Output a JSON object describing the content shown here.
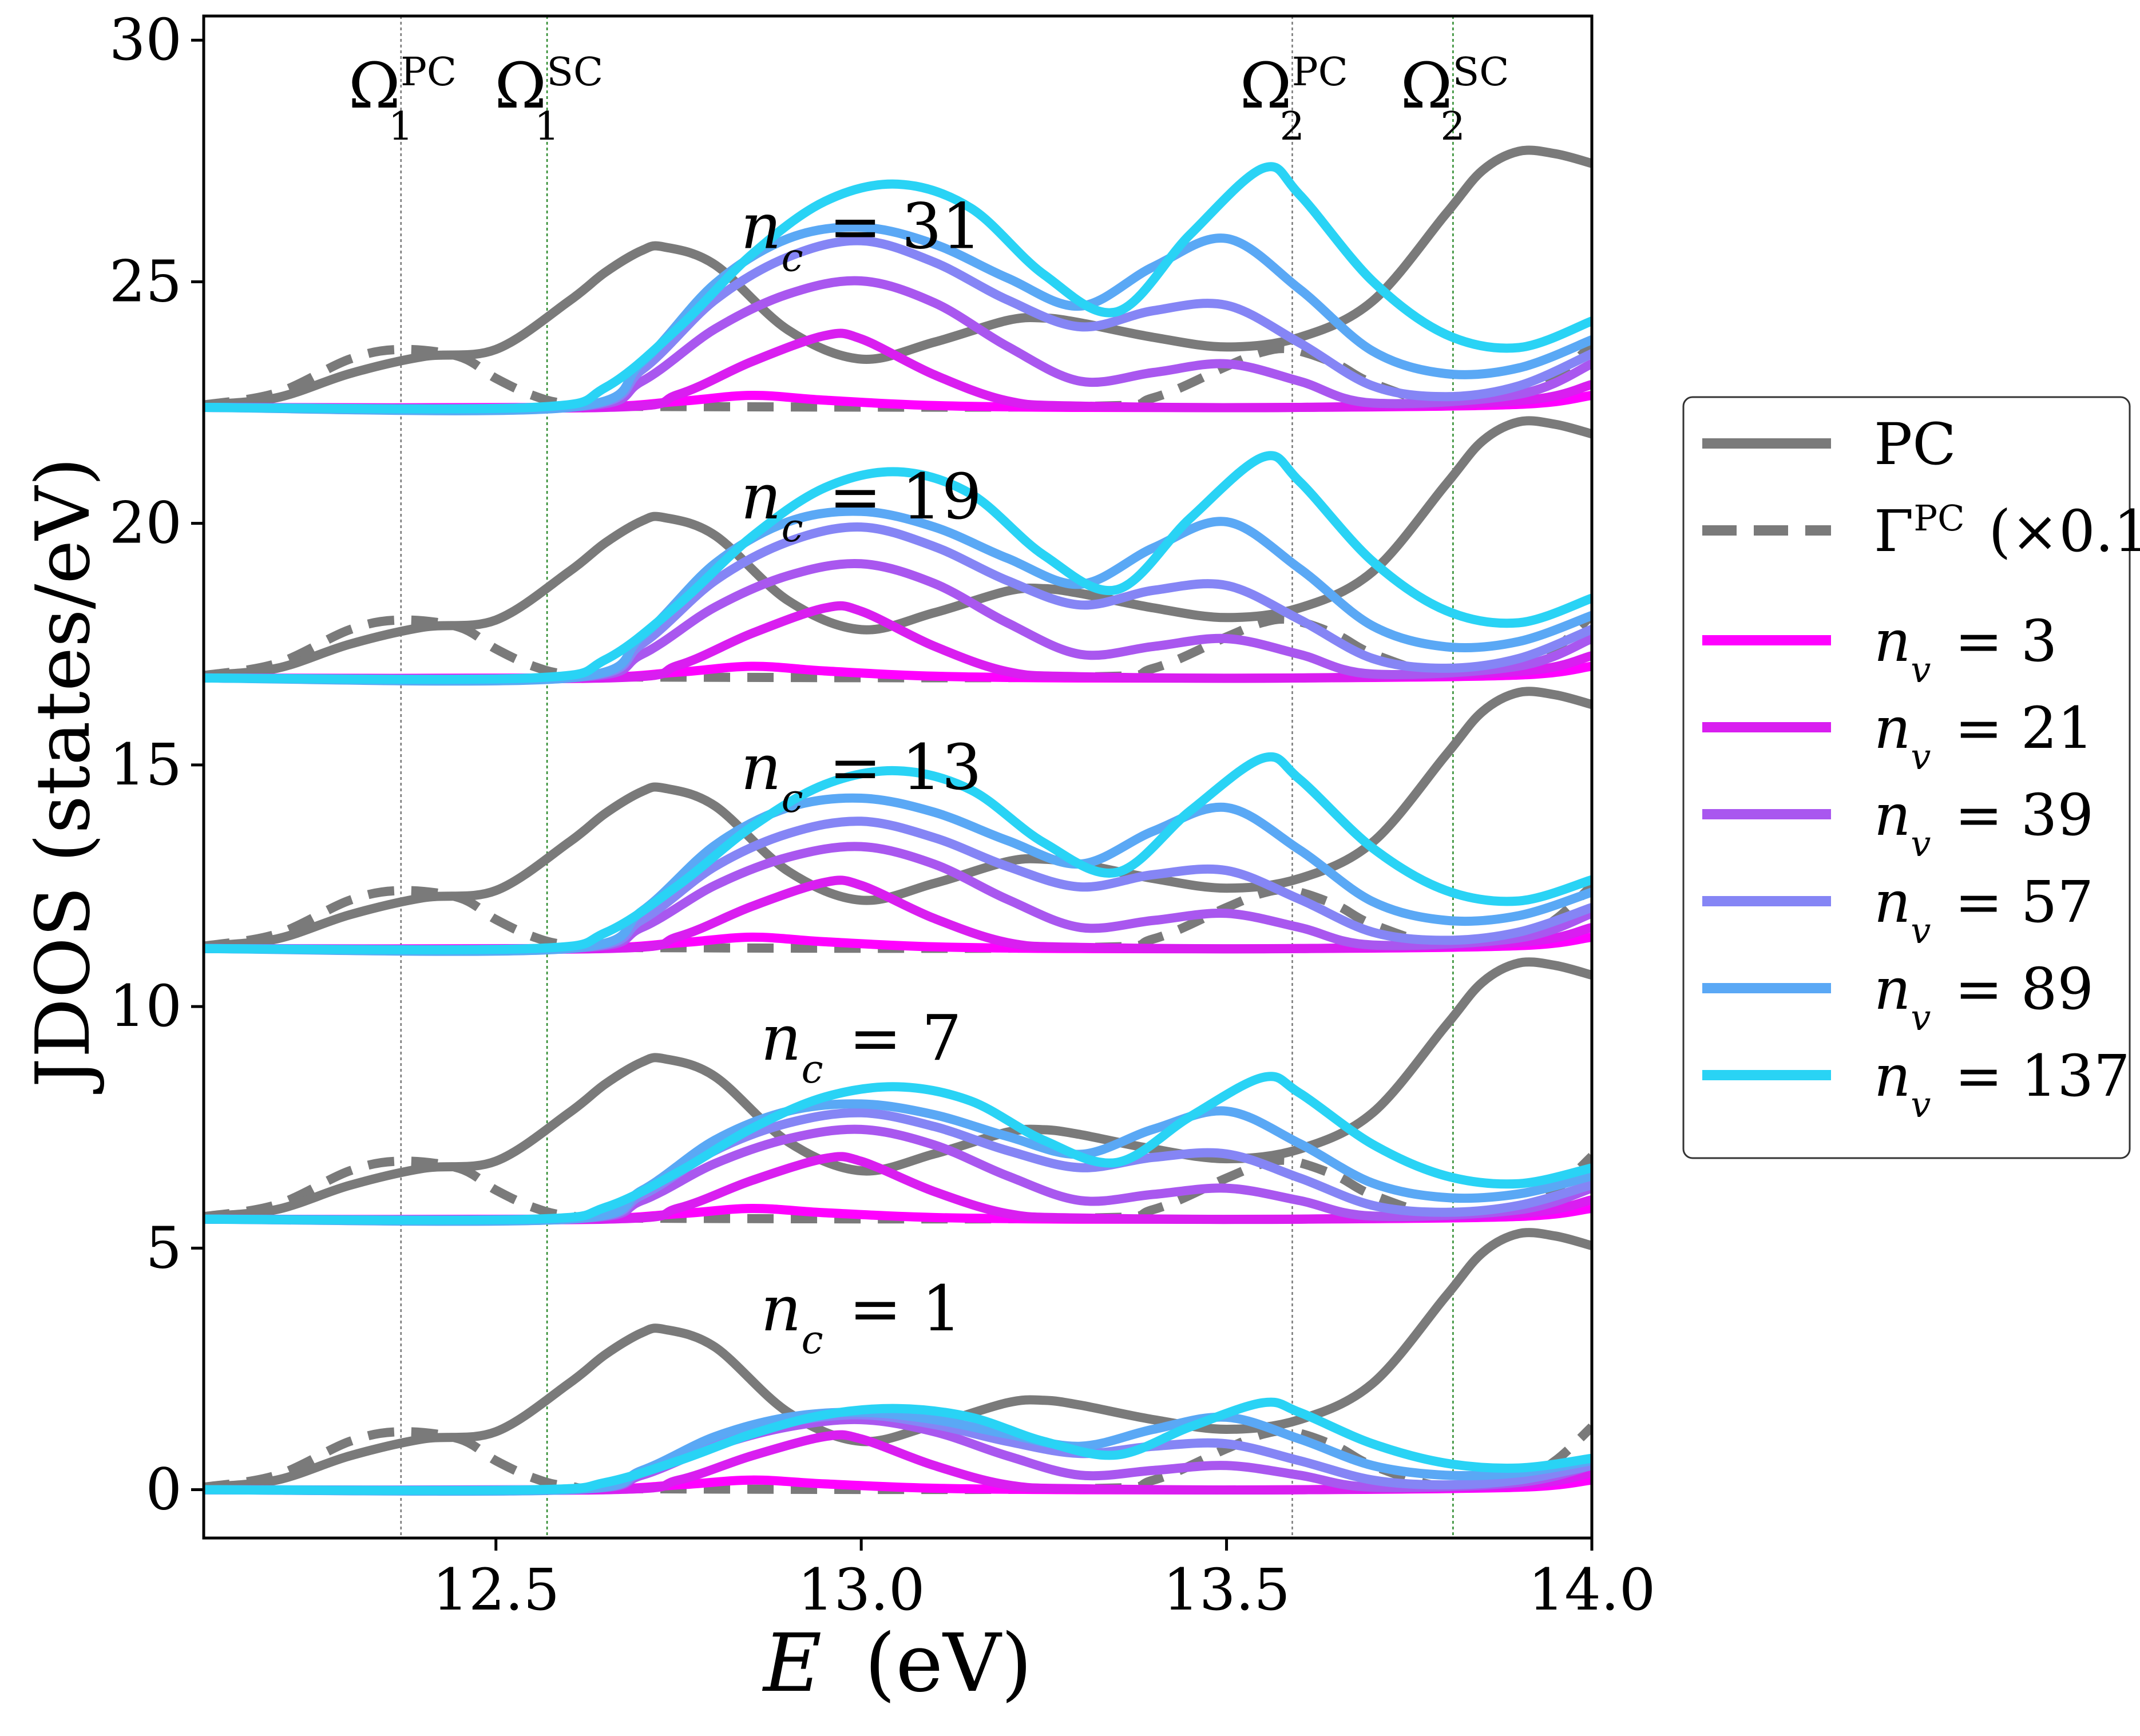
{
  "chart_data": {
    "type": "line",
    "xlabel_symbol": "E",
    "xlabel_unit": "(eV)",
    "ylabel": "JDOS (states/eV)",
    "xlim": [
      12.1,
      14.0
    ],
    "ylim": [
      -1.0,
      30.5
    ],
    "xticks": [
      12.5,
      13.0,
      13.5,
      14.0
    ],
    "xtick_labels": [
      "12.5",
      "13.0",
      "13.5",
      "14.0"
    ],
    "yticks": [
      0,
      5,
      10,
      15,
      20,
      25,
      30
    ],
    "ytick_labels": [
      "0",
      "5",
      "10",
      "15",
      "20",
      "25",
      "30"
    ],
    "vlines": [
      {
        "x": 12.37,
        "base": "Ω",
        "sub": "1",
        "sup": "PC",
        "color": "#777777"
      },
      {
        "x": 12.57,
        "base": "Ω",
        "sub": "1",
        "sup": "SC",
        "color": "#2e8b2e"
      },
      {
        "x": 13.59,
        "base": "Ω",
        "sub": "2",
        "sup": "PC",
        "color": "#777777"
      },
      {
        "x": 13.81,
        "base": "Ω",
        "sub": "2",
        "sup": "SC",
        "color": "#2e8b2e"
      }
    ],
    "groups": [
      {
        "label": "n",
        "sub": "c",
        "value": "= 1",
        "offset": 0.0
      },
      {
        "label": "n",
        "sub": "c",
        "value": "= 7",
        "offset": 5.6
      },
      {
        "label": "n",
        "sub": "c",
        "value": "= 13",
        "offset": 11.2
      },
      {
        "label": "n",
        "sub": "c",
        "value": "= 19",
        "offset": 16.8
      },
      {
        "label": "n",
        "sub": "c",
        "value": "= 31",
        "offset": 22.4
      }
    ],
    "legend": {
      "position": "right",
      "entries": [
        {
          "label": "PC",
          "color": "#7a7a7a",
          "dash": "solid"
        },
        {
          "label": "Γ",
          "sup": "PC",
          "suffix": "(×0.1)",
          "color": "#7a7a7a",
          "dash": "dashed"
        },
        {
          "label": "n",
          "sub": "v",
          "value": "= 3",
          "color": "#ff00ff"
        },
        {
          "label": "n",
          "sub": "v",
          "value": "= 21",
          "color": "#d91ef0"
        },
        {
          "label": "n",
          "sub": "v",
          "value": "= 39",
          "color": "#a957ef"
        },
        {
          "label": "n",
          "sub": "v",
          "value": "= 57",
          "color": "#8585f5"
        },
        {
          "label": "n",
          "sub": "v",
          "value": "= 89",
          "color": "#5aa8f5"
        },
        {
          "label": "n",
          "sub": "v",
          "value": "= 137",
          "color": "#29d3f5"
        }
      ]
    },
    "pc_curve": {
      "x": [
        12.1,
        12.2,
        12.3,
        12.4,
        12.5,
        12.6,
        12.65,
        12.7,
        12.73,
        12.8,
        12.9,
        13.0,
        13.1,
        13.2,
        13.25,
        13.3,
        13.4,
        13.5,
        13.6,
        13.7,
        13.8,
        13.85,
        13.9,
        13.95,
        14.0
      ],
      "y": [
        0.05,
        0.2,
        0.7,
        1.05,
        1.2,
        2.2,
        2.8,
        3.25,
        3.32,
        2.95,
        1.6,
        1.0,
        1.35,
        1.8,
        1.85,
        1.75,
        1.45,
        1.25,
        1.45,
        2.2,
        4.0,
        4.9,
        5.3,
        5.25,
        5.05
      ]
    },
    "gamma_curve": {
      "x": [
        12.1,
        12.2,
        12.3,
        12.37,
        12.45,
        12.5,
        12.55,
        12.6,
        12.7,
        13.3,
        13.4,
        13.5,
        13.55,
        13.59,
        13.65,
        13.7,
        13.8,
        13.9,
        13.95,
        14.0
      ],
      "y": [
        0.05,
        0.3,
        1.0,
        1.2,
        1.05,
        0.6,
        0.25,
        0.07,
        0.02,
        0.02,
        0.2,
        0.85,
        1.15,
        1.2,
        0.9,
        0.5,
        0.05,
        0.2,
        0.6,
        1.3
      ]
    },
    "nv_series": [
      {
        "name": "n_v = 3",
        "color": "#ff00ff",
        "x": [
          12.1,
          12.6,
          12.75,
          12.85,
          12.95,
          13.1,
          13.3,
          13.6,
          13.9,
          14.0
        ],
        "y": [
          0,
          0,
          0.1,
          0.2,
          0.12,
          0.03,
          0,
          0,
          0.05,
          0.2
        ]
      },
      {
        "name": "n_v = 21",
        "color": "#d91ef0",
        "x": [
          12.1,
          12.65,
          12.75,
          12.85,
          12.95,
          13.0,
          13.1,
          13.2,
          13.3,
          13.6,
          13.9,
          14.0
        ],
        "y": [
          0,
          0,
          0.2,
          0.7,
          1.1,
          1.05,
          0.5,
          0.1,
          0.02,
          0,
          0.1,
          0.35
        ]
      },
      {
        "name": "n_v = 39",
        "color": "#a957ef",
        "x": [
          12.1,
          12.6,
          12.7,
          12.8,
          12.9,
          13.0,
          13.1,
          13.2,
          13.3,
          13.4,
          13.5,
          13.6,
          13.7,
          13.9,
          14.0
        ],
        "y": [
          0,
          0,
          0.3,
          0.9,
          1.3,
          1.45,
          1.2,
          0.7,
          0.3,
          0.4,
          0.5,
          0.3,
          0.05,
          0.15,
          0.5
        ]
      },
      {
        "name": "n_v = 57",
        "color": "#8585f5",
        "x": [
          12.1,
          12.6,
          12.7,
          12.8,
          12.9,
          13.0,
          13.1,
          13.2,
          13.3,
          13.4,
          13.5,
          13.6,
          13.7,
          13.8,
          13.9,
          14.0
        ],
        "y": [
          0,
          0,
          0.35,
          1.0,
          1.4,
          1.55,
          1.35,
          1.0,
          0.75,
          0.9,
          0.95,
          0.6,
          0.2,
          0.1,
          0.2,
          0.5
        ]
      },
      {
        "name": "n_v = 89",
        "color": "#5aa8f5",
        "x": [
          12.1,
          12.6,
          12.7,
          12.8,
          12.9,
          13.0,
          13.1,
          13.2,
          13.3,
          13.4,
          13.5,
          13.6,
          13.7,
          13.8,
          13.9,
          14.0
        ],
        "y": [
          0,
          0,
          0.4,
          1.1,
          1.5,
          1.6,
          1.45,
          1.15,
          0.9,
          1.25,
          1.5,
          1.05,
          0.5,
          0.3,
          0.35,
          0.6
        ]
      },
      {
        "name": "n_v = 137",
        "color": "#29d3f5",
        "x": [
          12.1,
          12.55,
          12.65,
          12.75,
          12.85,
          12.95,
          13.05,
          13.15,
          13.25,
          13.35,
          13.45,
          13.55,
          13.6,
          13.7,
          13.8,
          13.9,
          14.0
        ],
        "y": [
          0,
          0,
          0.15,
          0.6,
          1.15,
          1.55,
          1.68,
          1.5,
          1.0,
          0.72,
          1.3,
          1.8,
          1.6,
          0.95,
          0.55,
          0.45,
          0.65
        ]
      }
    ],
    "group_growth": {
      "n_v = 3": [
        0,
        0.3,
        0.5,
        0.6,
        0.7
      ],
      "n_v = 21": [
        0,
        0.4,
        0.7,
        0.9,
        1.0
      ],
      "n_v = 39": [
        0,
        0.8,
        1.3,
        1.8,
        2.3
      ],
      "n_v = 57": [
        0,
        1.2,
        2.0,
        2.9,
        3.5
      ],
      "n_v = 89": [
        0,
        1.4,
        2.7,
        3.3,
        3.8
      ],
      "n_v = 137": [
        0,
        1.8,
        3.4,
        4.4,
        5.0
      ]
    }
  }
}
